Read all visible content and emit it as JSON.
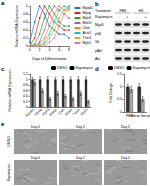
{
  "chart_data": [
    {
      "type": "line",
      "annotations": [
        "a"
      ],
      "x_label": "Days of Differentiation",
      "y_label": "Relative mRNA Expression",
      "x": [
        0,
        1,
        2,
        3,
        4,
        5,
        6,
        7,
        8
      ],
      "xlim": [
        0,
        8
      ],
      "xticks": [
        0,
        2,
        4,
        6,
        8
      ],
      "ylim": [
        0,
        1
      ],
      "yticks": [
        0,
        0.2,
        0.4,
        0.6,
        0.8,
        1
      ],
      "grid": false,
      "legend": "right",
      "marker": "circle",
      "series": [
        {
          "name": "Myod1",
          "color": "#1f77b4",
          "values": [
            0.1,
            0.6,
            1.0,
            0.8,
            0.5,
            0.4,
            0.3,
            0.3,
            0.2
          ]
        },
        {
          "name": "Myog",
          "color": "#d62728",
          "values": [
            0.0,
            0.2,
            0.7,
            1.0,
            0.8,
            0.6,
            0.5,
            0.4,
            0.4
          ]
        },
        {
          "name": "Myh3",
          "color": "#2ca02c",
          "values": [
            0.0,
            0.05,
            0.3,
            0.7,
            1.0,
            0.8,
            0.6,
            0.5,
            0.5
          ]
        },
        {
          "name": "Mef2c",
          "color": "#9467bd",
          "values": [
            0.0,
            0.0,
            0.1,
            0.4,
            0.8,
            1.0,
            0.9,
            0.8,
            0.7
          ]
        },
        {
          "name": "Ckm",
          "color": "#ff7f0e",
          "values": [
            0.0,
            0.0,
            0.05,
            0.2,
            0.5,
            0.8,
            1.0,
            0.9,
            0.9
          ]
        },
        {
          "name": "Acta1",
          "color": "#17becf",
          "values": [
            0.0,
            0.0,
            0.0,
            0.1,
            0.3,
            0.6,
            0.9,
            1.0,
            0.95
          ]
        },
        {
          "name": "Tnnt1",
          "color": "#bcbd22",
          "values": [
            0.0,
            0.0,
            0.0,
            0.05,
            0.2,
            0.4,
            0.7,
            0.9,
            1.0
          ]
        },
        {
          "name": "Myh1",
          "color": "#e377c2",
          "values": [
            0.0,
            0.0,
            0.0,
            0.0,
            0.1,
            0.2,
            0.5,
            0.8,
            1.0
          ]
        }
      ]
    },
    {
      "type": "bar",
      "annotations": [
        "c"
      ],
      "y_label": "Relative mRNA Expression",
      "categories": [
        "Myod1",
        "Myog",
        "Myh3",
        "Mef2c",
        "Ckm",
        "Acta1",
        "Tnnt1",
        "Myh1"
      ],
      "ylim": [
        0,
        1.2
      ],
      "yticks": [
        0,
        0.2,
        0.4,
        0.6,
        0.8,
        1,
        1.2
      ],
      "grid": false,
      "legend": "top-right",
      "series": [
        {
          "name": "DMSO",
          "color": "#333333",
          "values": [
            1,
            1,
            1,
            1,
            1,
            1,
            1,
            1
          ],
          "errors": [
            0.08,
            0.1,
            0.1,
            0.08,
            0.1,
            0.09,
            0.1,
            0.1
          ]
        },
        {
          "name": "Rapamycin",
          "color": "#aaaaaa",
          "values": [
            0.9,
            0.6,
            0.3,
            0.5,
            0.4,
            0.3,
            0.5,
            0.2
          ],
          "errors": [
            0.1,
            0.08,
            0.05,
            0.07,
            0.06,
            0.05,
            0.08,
            0.04
          ]
        }
      ]
    },
    {
      "type": "bar",
      "annotations": [
        "d"
      ],
      "y_label": "Fold Change",
      "categories": [
        "FBS",
        "Horse Serum"
      ],
      "ylim": [
        0,
        1.5
      ],
      "yticks": [
        0,
        0.5,
        1,
        1.5
      ],
      "grid": false,
      "legend": "top-right",
      "series": [
        {
          "name": "DMSO",
          "color": "#333333",
          "values": [
            1.0,
            1.0
          ],
          "errors": [
            0.1,
            0.12
          ]
        },
        {
          "name": "Rapamycin",
          "color": "#aaaaaa",
          "values": [
            0.9,
            0.5
          ],
          "errors": [
            0.12,
            0.1
          ]
        }
      ]
    }
  ],
  "blot": {
    "annotation": "b",
    "header": "Treatment",
    "groups": [
      "FBS",
      "HS"
    ],
    "lane_row": "Rapamycin",
    "lanes": [
      "-",
      "+",
      "-",
      "+"
    ],
    "rows": [
      "MyoD",
      "pS6",
      "S6",
      "pAkt",
      "Akt"
    ]
  },
  "micrographs": {
    "annotation": "e",
    "columns": [
      "Day 0",
      "Day 2",
      "Day 5"
    ],
    "rows": [
      "DMSO",
      "Rapamycin"
    ]
  }
}
